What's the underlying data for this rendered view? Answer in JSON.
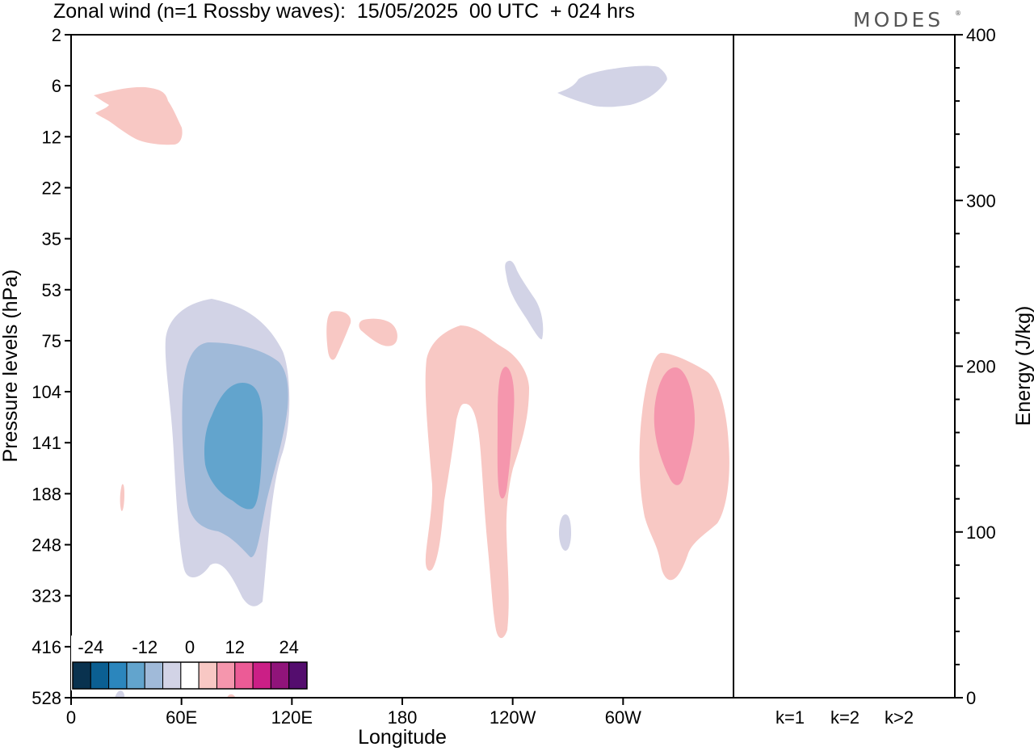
{
  "title": "Zonal wind (n=1 Rossby waves):  15/05/2025  00 UTC  + 024 hrs",
  "logo": "MODES",
  "logo_mark": "®",
  "chart_data": [
    {
      "type": "heatmap",
      "xlabel": "Longitude",
      "ylabel": "Pressure levels (hPa)",
      "x_ticks": [
        "0",
        "60E",
        "120E",
        "180",
        "120W",
        "60W"
      ],
      "x_tick_values": [
        0,
        60,
        120,
        180,
        240,
        300
      ],
      "xlim": [
        0,
        360
      ],
      "y_ticks": [
        "2",
        "6",
        "12",
        "22",
        "35",
        "53",
        "75",
        "104",
        "141",
        "188",
        "248",
        "323",
        "416",
        "528"
      ],
      "y_scale": "pressure levels (evenly spaced labels)",
      "colorbar": {
        "labels": [
          "-24",
          "-12",
          "0",
          "12",
          "24"
        ],
        "label_values": [
          -24,
          -12,
          0,
          12,
          24
        ],
        "levels": [
          -28,
          -24,
          -20,
          -16,
          -12,
          -8,
          -4,
          4,
          8,
          12,
          16,
          20,
          24,
          28
        ],
        "colors": [
          "#09324f",
          "#0b5f92",
          "#2b86bd",
          "#62a4cd",
          "#a0bad9",
          "#d2d3e6",
          "#ffffff",
          "#f8c8c4",
          "#f596ad",
          "#ec5b96",
          "#cb1f86",
          "#90147a",
          "#540d6e"
        ]
      },
      "features": [
        {
          "sign": "negative",
          "max_abs_value": 12,
          "longitude_range": [
            25,
            95
          ],
          "pressure_range": [
            53,
            323
          ]
        },
        {
          "sign": "negative",
          "max_abs_value": 4,
          "longitude_range": [
            230,
            275
          ],
          "pressure_range": [
            4,
            8
          ]
        },
        {
          "sign": "negative",
          "max_abs_value": 4,
          "longitude_range": [
            235,
            250
          ],
          "pressure_range": [
            35,
            75
          ]
        },
        {
          "sign": "positive",
          "max_abs_value": 4,
          "longitude_range": [
            5,
            40
          ],
          "pressure_range": [
            6,
            12
          ]
        },
        {
          "sign": "positive",
          "max_abs_value": 8,
          "longitude_range": [
            190,
            250
          ],
          "pressure_range": [
            75,
            416
          ]
        },
        {
          "sign": "positive",
          "max_abs_value": 8,
          "longitude_range": [
            310,
            360
          ],
          "pressure_range": [
            75,
            323
          ]
        }
      ]
    },
    {
      "type": "bar",
      "ylabel": "Energy (J/kg)",
      "categories": [
        "k=1",
        "k=2",
        "k>2"
      ],
      "values": [
        0.4,
        0.4,
        0.4
      ],
      "ylim": [
        0,
        400
      ],
      "y_ticks": [
        0,
        100,
        200,
        300,
        400
      ]
    }
  ]
}
